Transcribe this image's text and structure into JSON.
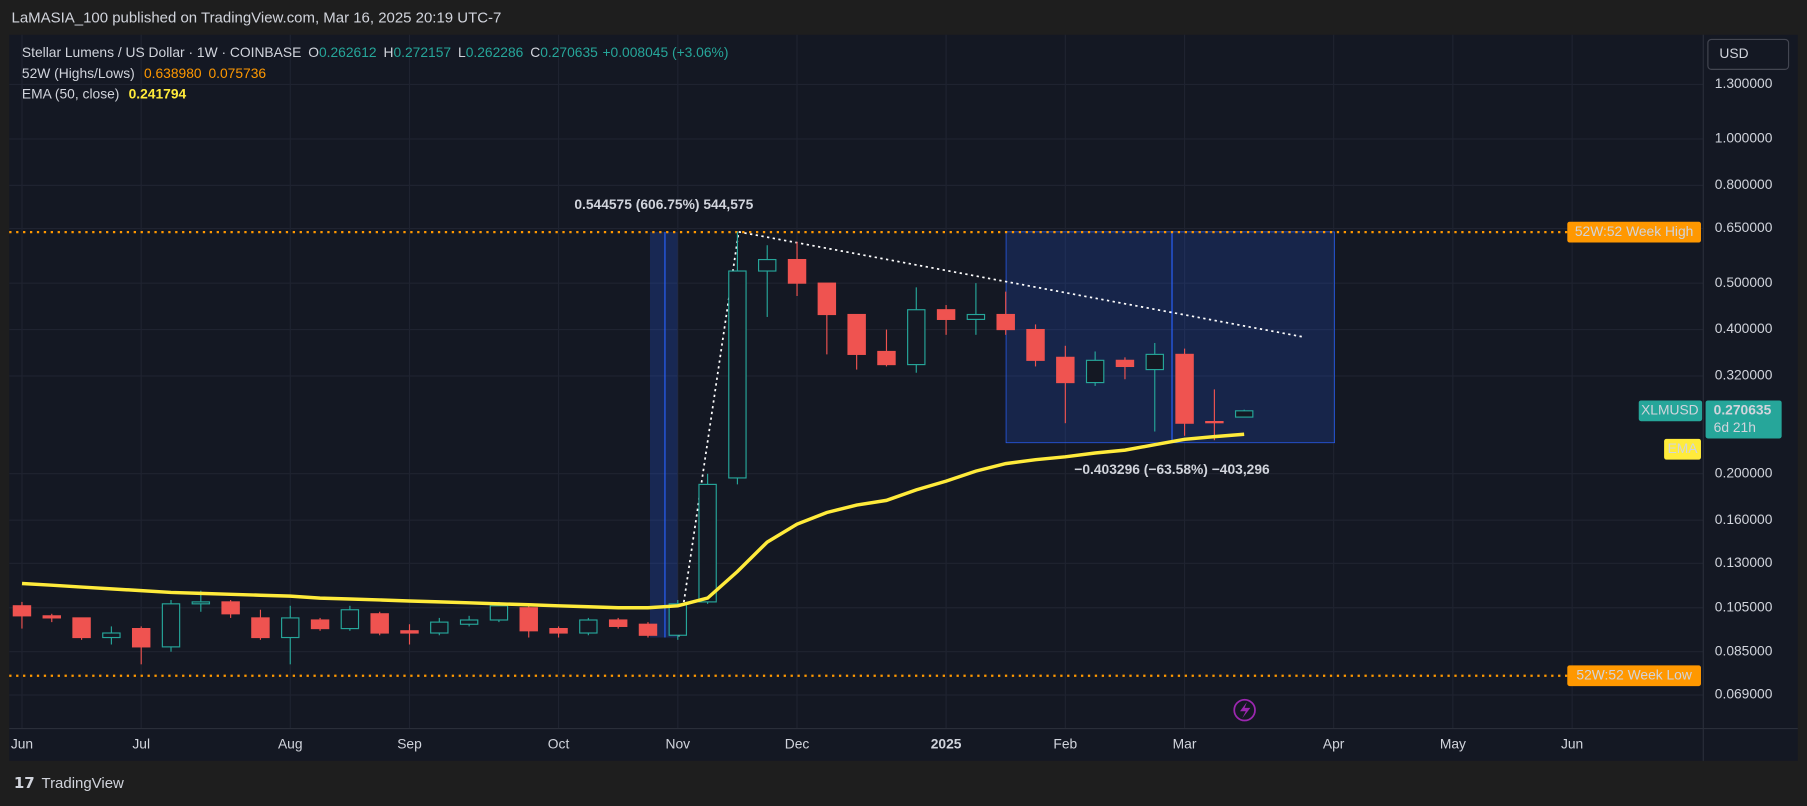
{
  "header": {
    "published": "LaMASIA_100 published on TradingView.com, Mar 16, 2025 20:19 UTC-7"
  },
  "footer": {
    "brand": "TradingView"
  },
  "chart_data": {
    "type": "candlestick",
    "title": "Stellar Lumens / US Dollar · 1W · COINBASE",
    "ohlc_letters": [
      "O",
      "H",
      "L",
      "C"
    ],
    "change": "+0.008045 (+3.06%)",
    "currency": "USD",
    "symbol": "XLMUSD",
    "countdown": "6d 21h",
    "log_scale": true,
    "grid": true,
    "up_color": "#26a69a",
    "down_color": "#ef5350",
    "categories": [
      null,
      null,
      null,
      null,
      null,
      null,
      null,
      null,
      null,
      null,
      null,
      null,
      null,
      null,
      null,
      null,
      null,
      null,
      null,
      null,
      null,
      null,
      null,
      null,
      null,
      null,
      null,
      null,
      null,
      null,
      null,
      null,
      null,
      null,
      null,
      null,
      null,
      null,
      null,
      null,
      null,
      null
    ],
    "open": [
      0.106,
      0.101,
      0.1,
      0.091,
      0.095,
      0.087,
      0.107,
      0.108,
      0.1,
      0.091,
      0.099,
      0.095,
      0.102,
      0.094,
      0.093,
      0.097,
      0.099,
      0.105,
      0.095,
      0.093,
      0.099,
      0.097,
      0.092,
      0.108,
      0.196,
      0.53,
      0.56,
      0.5,
      0.43,
      0.36,
      0.338,
      0.44,
      0.42,
      0.43,
      0.4,
      0.35,
      0.31,
      0.345,
      0.33,
      0.355,
      0.257,
      0.262612
    ],
    "high": [
      0.108,
      0.102,
      0.1,
      0.096,
      0.096,
      0.109,
      0.114,
      0.109,
      0.104,
      0.106,
      0.1,
      0.106,
      0.103,
      0.097,
      0.1,
      0.101,
      0.108,
      0.106,
      0.096,
      0.1,
      0.1,
      0.098,
      0.109,
      0.2,
      0.64,
      0.6,
      0.61,
      0.5,
      0.43,
      0.4,
      0.49,
      0.45,
      0.5,
      0.48,
      0.41,
      0.37,
      0.36,
      0.35,
      0.375,
      0.365,
      0.3,
      0.272157
    ],
    "low": [
      0.095,
      0.098,
      0.09,
      0.088,
      0.08,
      0.085,
      0.103,
      0.1,
      0.09,
      0.08,
      0.094,
      0.094,
      0.092,
      0.088,
      0.092,
      0.096,
      0.098,
      0.091,
      0.091,
      0.092,
      0.095,
      0.091,
      0.09,
      0.107,
      0.19,
      0.425,
      0.47,
      0.355,
      0.33,
      0.335,
      0.325,
      0.39,
      0.39,
      0.39,
      0.335,
      0.255,
      0.305,
      0.315,
      0.245,
      0.24,
      0.235,
      0.262286
    ],
    "close": [
      0.101,
      0.1,
      0.091,
      0.093,
      0.087,
      0.107,
      0.108,
      0.102,
      0.091,
      0.1,
      0.095,
      0.104,
      0.093,
      0.093,
      0.098,
      0.099,
      0.106,
      0.094,
      0.093,
      0.099,
      0.096,
      0.092,
      0.107,
      0.19,
      0.53,
      0.56,
      0.5,
      0.43,
      0.355,
      0.338,
      0.44,
      0.42,
      0.43,
      0.4,
      0.345,
      0.31,
      0.345,
      0.335,
      0.355,
      0.255,
      0.256,
      0.270635
    ],
    "series": [
      {
        "name": "EMA (50, close)",
        "tag": "EMA",
        "color": "#ffeb3b",
        "values": [
          0.118,
          0.117,
          0.116,
          0.115,
          0.114,
          0.113,
          0.1125,
          0.112,
          0.1115,
          0.111,
          0.11,
          0.1095,
          0.109,
          0.1085,
          0.108,
          0.1075,
          0.107,
          0.1065,
          0.106,
          0.1055,
          0.105,
          0.105,
          0.106,
          0.11,
          0.125,
          0.144,
          0.157,
          0.166,
          0.172,
          0.176,
          0.185,
          0.193,
          0.2025,
          0.21,
          0.214,
          0.217,
          0.221,
          0.224,
          0.23,
          0.236,
          0.239,
          0.241794
        ]
      }
    ],
    "week52": {
      "name": "52W (Highs/Lows)",
      "color": "#ff9800",
      "high": {
        "value": 0.63898,
        "label": "0.638980"
      },
      "low": {
        "value": 0.075736,
        "label": "0.075736"
      },
      "high_tag": "52W:52 Week High",
      "low_tag": "52W:52 Week Low"
    },
    "annotations": [
      "0.544575 (606.75%) 544,575",
      "−0.403296 (−63.58%) −403,296"
    ],
    "xlim": [
      -0.35,
      56.4
    ],
    "xticks": [
      {
        "value": 0,
        "label": "Jun"
      },
      {
        "value": 4,
        "label": "Jul"
      },
      {
        "value": 9,
        "label": "Aug"
      },
      {
        "value": 13,
        "label": "Sep"
      },
      {
        "value": 18,
        "label": "Oct"
      },
      {
        "value": 22,
        "label": "Nov"
      },
      {
        "value": 26,
        "label": "Dec"
      },
      {
        "value": 31,
        "label": "2025"
      },
      {
        "value": 35,
        "label": "Feb"
      },
      {
        "value": 39,
        "label": "Mar"
      },
      {
        "value": 44,
        "label": "Apr"
      },
      {
        "value": 48,
        "label": "May"
      },
      {
        "value": 52,
        "label": "Jun"
      }
    ],
    "ylim": [
      0.0594,
      1.65
    ],
    "yticks": [
      {
        "value": 1.3,
        "label": "1.300000"
      },
      {
        "value": 1.0,
        "label": "1.000000"
      },
      {
        "value": 0.8,
        "label": "0.800000"
      },
      {
        "value": 0.65,
        "label": "0.650000"
      },
      {
        "value": 0.5,
        "label": "0.500000"
      },
      {
        "value": 0.4,
        "label": "0.400000"
      },
      {
        "value": 0.32,
        "label": "0.320000"
      },
      {
        "value": 0.2,
        "label": "0.200000"
      },
      {
        "value": 0.16,
        "label": "0.160000"
      },
      {
        "value": 0.13,
        "label": "0.130000"
      },
      {
        "value": 0.105,
        "label": "0.105000"
      },
      {
        "value": 0.085,
        "label": "0.085000"
      },
      {
        "value": 0.069,
        "label": "0.069000"
      }
    ]
  }
}
